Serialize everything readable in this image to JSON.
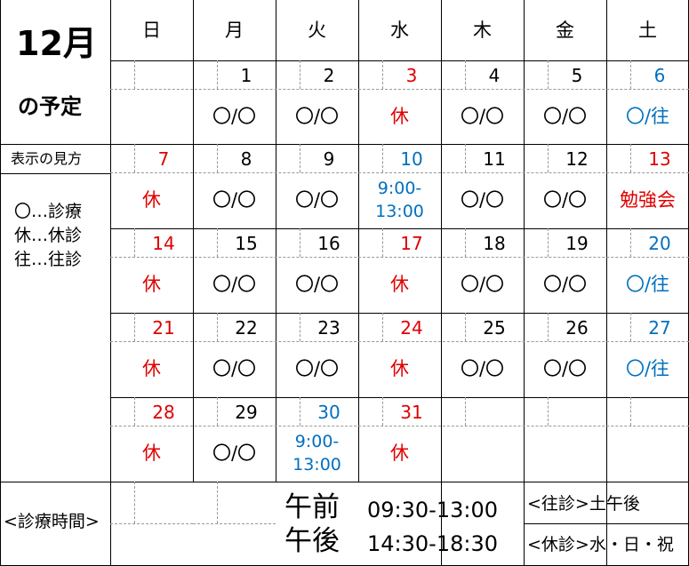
{
  "header": {
    "title": "12月",
    "subtitle": "の予定"
  },
  "weekdays": [
    "日",
    "月",
    "火",
    "水",
    "木",
    "金",
    "土"
  ],
  "legend": {
    "title": "表示の見方",
    "items": [
      "〇…診療",
      "休…休診",
      "往…往診"
    ]
  },
  "weeks": [
    [
      null,
      {
        "date": 1,
        "status": [
          "〇/〇"
        ],
        "date_color": "#000000",
        "status_color": "#000000"
      },
      {
        "date": 2,
        "status": [
          "〇/〇"
        ],
        "date_color": "#000000",
        "status_color": "#000000"
      },
      {
        "date": 3,
        "status": [
          "休"
        ],
        "date_color": "#e00000",
        "status_color": "#e00000"
      },
      {
        "date": 4,
        "status": [
          "〇/〇"
        ],
        "date_color": "#000000",
        "status_color": "#000000"
      },
      {
        "date": 5,
        "status": [
          "〇/〇"
        ],
        "date_color": "#000000",
        "status_color": "#000000"
      },
      {
        "date": 6,
        "status": [
          "〇/往"
        ],
        "date_color": "#0070c0",
        "status_color": "#0070c0"
      }
    ],
    [
      {
        "date": 7,
        "status": [
          "休"
        ],
        "date_color": "#e00000",
        "status_color": "#e00000"
      },
      {
        "date": 8,
        "status": [
          "〇/〇"
        ],
        "date_color": "#000000",
        "status_color": "#000000"
      },
      {
        "date": 9,
        "status": [
          "〇/〇"
        ],
        "date_color": "#000000",
        "status_color": "#000000"
      },
      {
        "date": 10,
        "status": [
          "9:00-",
          "13:00"
        ],
        "date_color": "#0070c0",
        "status_color": "#0070c0"
      },
      {
        "date": 11,
        "status": [
          "〇/〇"
        ],
        "date_color": "#000000",
        "status_color": "#000000"
      },
      {
        "date": 12,
        "status": [
          "〇/〇"
        ],
        "date_color": "#000000",
        "status_color": "#000000"
      },
      {
        "date": 13,
        "status": [
          "勉強会"
        ],
        "date_color": "#e00000",
        "status_color": "#e00000"
      }
    ],
    [
      {
        "date": 14,
        "status": [
          "休"
        ],
        "date_color": "#e00000",
        "status_color": "#e00000"
      },
      {
        "date": 15,
        "status": [
          "〇/〇"
        ],
        "date_color": "#000000",
        "status_color": "#000000"
      },
      {
        "date": 16,
        "status": [
          "〇/〇"
        ],
        "date_color": "#000000",
        "status_color": "#000000"
      },
      {
        "date": 17,
        "status": [
          "休"
        ],
        "date_color": "#e00000",
        "status_color": "#e00000"
      },
      {
        "date": 18,
        "status": [
          "〇/〇"
        ],
        "date_color": "#000000",
        "status_color": "#000000"
      },
      {
        "date": 19,
        "status": [
          "〇/〇"
        ],
        "date_color": "#000000",
        "status_color": "#000000"
      },
      {
        "date": 20,
        "status": [
          "〇/往"
        ],
        "date_color": "#0070c0",
        "status_color": "#0070c0"
      }
    ],
    [
      {
        "date": 21,
        "status": [
          "休"
        ],
        "date_color": "#e00000",
        "status_color": "#e00000"
      },
      {
        "date": 22,
        "status": [
          "〇/〇"
        ],
        "date_color": "#000000",
        "status_color": "#000000"
      },
      {
        "date": 23,
        "status": [
          "〇/〇"
        ],
        "date_color": "#000000",
        "status_color": "#000000"
      },
      {
        "date": 24,
        "status": [
          "休"
        ],
        "date_color": "#e00000",
        "status_color": "#e00000"
      },
      {
        "date": 25,
        "status": [
          "〇/〇"
        ],
        "date_color": "#000000",
        "status_color": "#000000"
      },
      {
        "date": 26,
        "status": [
          "〇/〇"
        ],
        "date_color": "#000000",
        "status_color": "#000000"
      },
      {
        "date": 27,
        "status": [
          "〇/往"
        ],
        "date_color": "#0070c0",
        "status_color": "#0070c0"
      }
    ],
    [
      {
        "date": 28,
        "status": [
          "休"
        ],
        "date_color": "#e00000",
        "status_color": "#e00000"
      },
      {
        "date": 29,
        "status": [
          "〇/〇"
        ],
        "date_color": "#000000",
        "status_color": "#000000"
      },
      {
        "date": 30,
        "status": [
          "9:00-",
          "13:00"
        ],
        "date_color": "#0070c0",
        "status_color": "#0070c0"
      },
      {
        "date": 31,
        "status": [
          "休"
        ],
        "date_color": "#e00000",
        "status_color": "#e00000"
      },
      null,
      null,
      null
    ]
  ],
  "hours": {
    "title": "<診療時間>",
    "rows": [
      {
        "label": "午前",
        "time": "09:30-13:00"
      },
      {
        "label": "午後",
        "time": "14:30-18:30"
      }
    ],
    "notes": [
      "<往診>土午後",
      "<休診>水・日・祝"
    ]
  }
}
